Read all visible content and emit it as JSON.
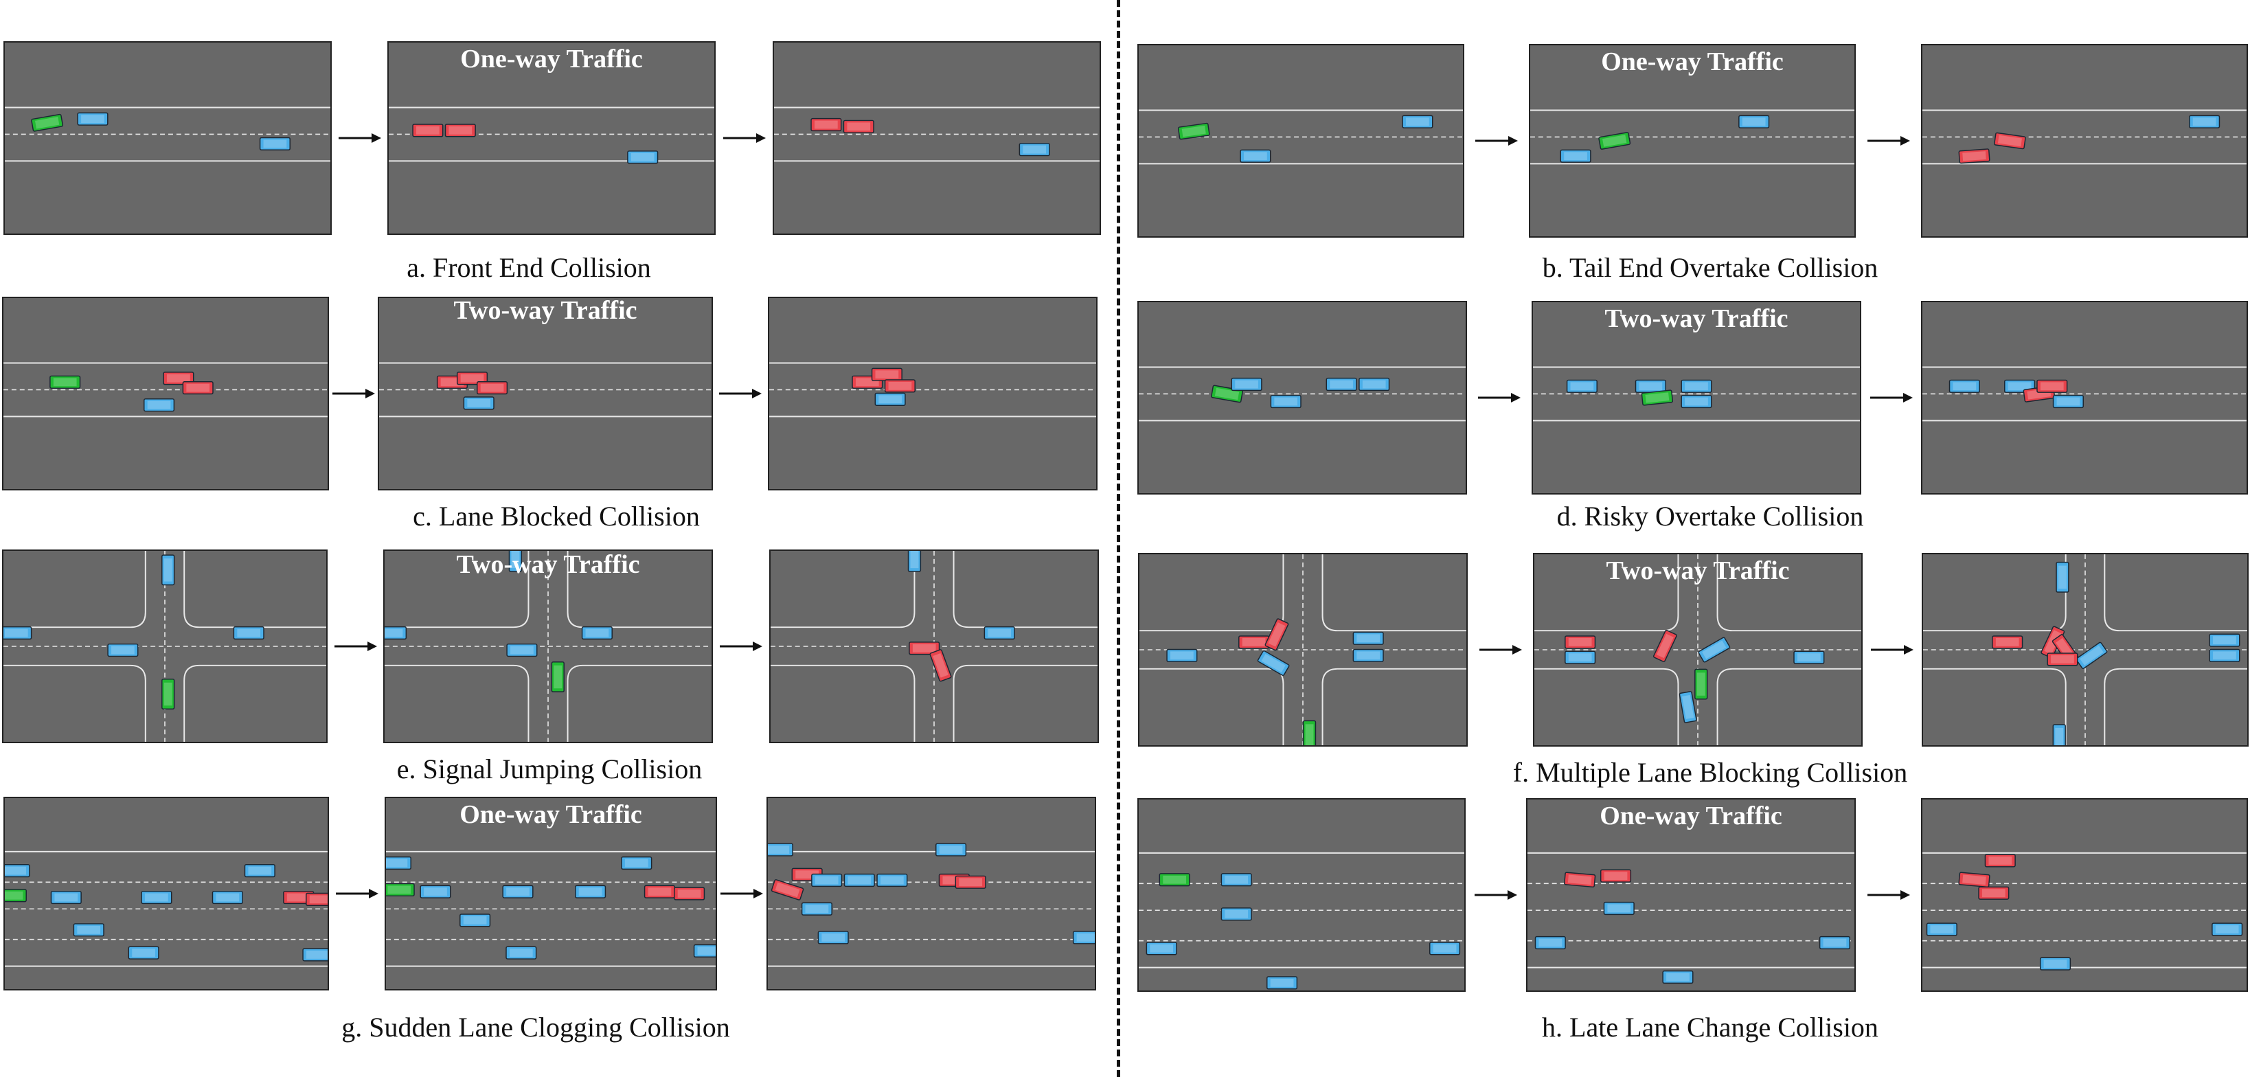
{
  "colors": {
    "road": "#686868",
    "line": "#e8e8e8",
    "blue": "#4aaee8",
    "green": "#22bb33",
    "red": "#e8434c"
  },
  "scenarios": [
    {
      "id": "a",
      "caption": "a. Front End Collision",
      "layout": "straight",
      "titles": [
        "",
        "One-way Traffic",
        ""
      ]
    },
    {
      "id": "b",
      "caption": "b. Tail End Overtake Collision",
      "layout": "straight",
      "titles": [
        "",
        "One-way Traffic",
        ""
      ]
    },
    {
      "id": "c",
      "caption": "c. Lane Blocked Collision",
      "layout": "straight",
      "titles": [
        "",
        "Two-way Traffic",
        ""
      ]
    },
    {
      "id": "d",
      "caption": "d. Risky Overtake Collision",
      "layout": "straight",
      "titles": [
        "",
        "Two-way Traffic",
        ""
      ]
    },
    {
      "id": "e",
      "caption": "e. Signal Jumping Collision",
      "layout": "intersection",
      "titles": [
        "",
        "Two-way Traffic",
        ""
      ]
    },
    {
      "id": "f",
      "caption": "f. Multiple Lane Blocking Collision",
      "layout": "intersection",
      "titles": [
        "",
        "Two-way Traffic",
        ""
      ]
    },
    {
      "id": "g",
      "caption": "g. Sudden Lane Clogging Collision",
      "layout": "multilane",
      "titles": [
        "",
        "One-way Traffic",
        ""
      ]
    },
    {
      "id": "h",
      "caption": "h. Late Lane Change Collision",
      "layout": "multilane",
      "titles": [
        "",
        "One-way Traffic",
        ""
      ]
    }
  ]
}
